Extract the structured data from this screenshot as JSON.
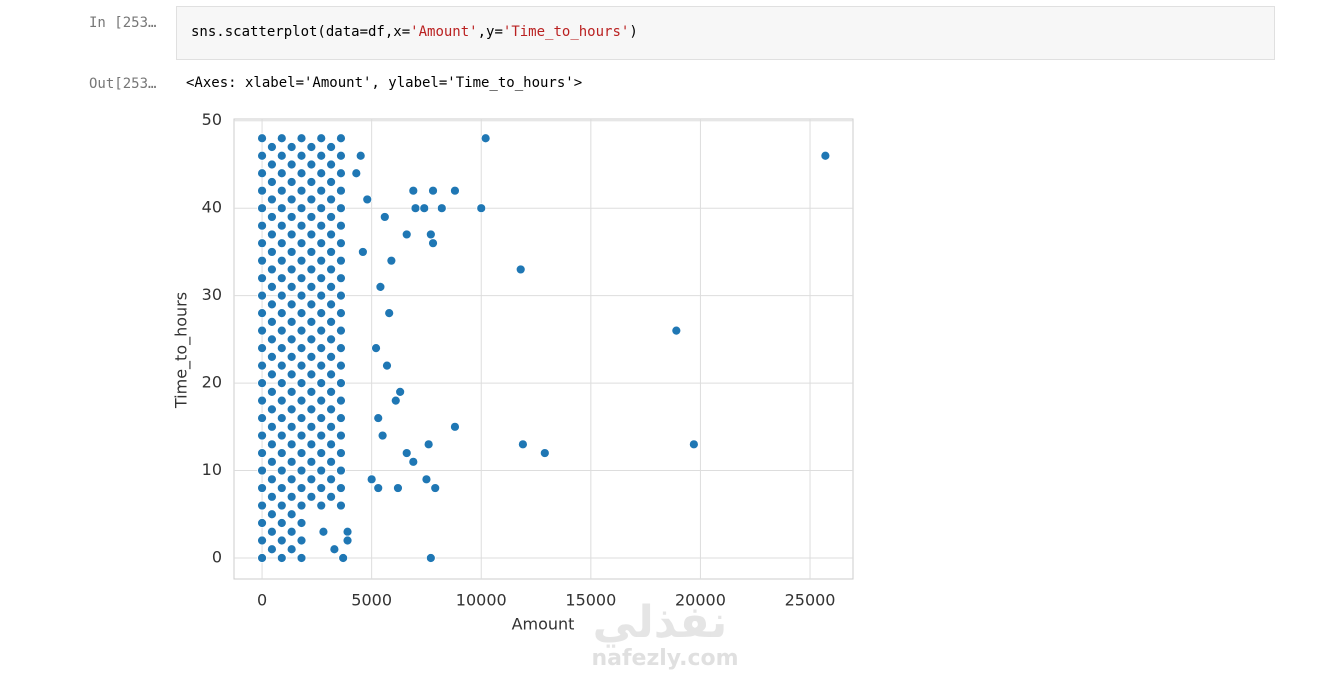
{
  "notebook": {
    "in_prompt": "In [253…",
    "code_tokens": [
      "sns.scatterplot(data=df,x=",
      "'Amount'",
      ",y=",
      "'Time_to_hours'",
      ")"
    ],
    "out_prompt": "Out[253…",
    "output_text": "<Axes: xlabel='Amount', ylabel='Time_to_hours'>"
  },
  "watermark": {
    "arabic": "نفذلي",
    "site": "nafezly.com"
  },
  "chart_data": {
    "type": "scatter",
    "xlabel": "Amount",
    "ylabel": "Time_to_hours",
    "color": "#1f77b4",
    "grid": true,
    "xlim": [
      -1280,
      26960
    ],
    "ylim": [
      -2.4,
      50.2
    ],
    "xticks": [
      0,
      5000,
      10000,
      15000,
      20000,
      25000
    ],
    "yticks": [
      0,
      10,
      20,
      30,
      40,
      50
    ],
    "x": [
      0,
      900,
      1800,
      450,
      1350,
      0,
      900,
      1800,
      450,
      1350,
      0,
      900,
      1800,
      450,
      1350,
      0,
      900,
      1800,
      2700,
      3600,
      450,
      1350,
      2250,
      3150,
      0,
      900,
      1800,
      2700,
      3600,
      450,
      1350,
      2250,
      3150,
      0,
      900,
      1800,
      2700,
      3600,
      450,
      1350,
      2250,
      3150,
      0,
      900,
      1800,
      2700,
      3600,
      450,
      1350,
      2250,
      3150,
      0,
      900,
      1800,
      2700,
      3600,
      450,
      1350,
      2250,
      3150,
      0,
      900,
      1800,
      2700,
      3600,
      450,
      1350,
      2250,
      3150,
      0,
      900,
      1800,
      2700,
      3600,
      450,
      1350,
      2250,
      3150,
      0,
      900,
      1800,
      2700,
      3600,
      450,
      1350,
      2250,
      3150,
      0,
      900,
      1800,
      2700,
      3600,
      450,
      1350,
      2250,
      3150,
      0,
      900,
      1800,
      2700,
      3600,
      450,
      1350,
      2250,
      3150,
      0,
      900,
      1800,
      2700,
      3600,
      450,
      1350,
      2250,
      3150,
      0,
      900,
      1800,
      2700,
      3600,
      450,
      1350,
      2250,
      3150,
      0,
      900,
      1800,
      2700,
      3600,
      450,
      1350,
      2250,
      3150,
      0,
      900,
      1800,
      2700,
      3600,
      450,
      1350,
      2250,
      3150,
      0,
      900,
      1800,
      2700,
      3600,
      450,
      1350,
      2250,
      3150,
      0,
      900,
      1800,
      2700,
      3600,
      450,
      1350,
      2250,
      3150,
      0,
      900,
      1800,
      2700,
      3600,
      450,
      1350,
      2250,
      3150,
      0,
      900,
      1800,
      2700,
      3600,
      450,
      1350,
      2250,
      3150,
      0,
      900,
      1800,
      2700,
      3600,
      450,
      1350,
      2250,
      3150,
      0,
      900,
      1800,
      2700,
      3600,
      450,
      1350,
      2250,
      3150,
      0,
      900,
      1800,
      2700,
      3600,
      450,
      1350,
      2250,
      3150,
      0,
      900,
      1800,
      2700,
      3600,
      10200,
      25700,
      10000,
      11800,
      18900,
      8800,
      11900,
      19700,
      12900,
      7700,
      7600,
      7900,
      7500,
      8800,
      7800,
      6900,
      8200,
      7000,
      7400,
      7700,
      7800,
      6600,
      5900,
      5600,
      6300,
      6100,
      5700,
      5200,
      5800,
      5400,
      5300,
      5500,
      6600,
      6900,
      5000,
      6200,
      5300,
      3900,
      3900,
      3700,
      3300,
      2800,
      4500,
      4800,
      4300,
      4600
    ],
    "values": [
      0,
      0,
      0,
      1,
      1,
      2,
      2,
      2,
      3,
      3,
      4,
      4,
      4,
      5,
      5,
      6,
      6,
      6,
      6,
      6,
      7,
      7,
      7,
      7,
      8,
      8,
      8,
      8,
      8,
      9,
      9,
      9,
      9,
      10,
      10,
      10,
      10,
      10,
      11,
      11,
      11,
      11,
      12,
      12,
      12,
      12,
      12,
      13,
      13,
      13,
      13,
      14,
      14,
      14,
      14,
      14,
      15,
      15,
      15,
      15,
      16,
      16,
      16,
      16,
      16,
      17,
      17,
      17,
      17,
      18,
      18,
      18,
      18,
      18,
      19,
      19,
      19,
      19,
      20,
      20,
      20,
      20,
      20,
      21,
      21,
      21,
      21,
      22,
      22,
      22,
      22,
      22,
      23,
      23,
      23,
      23,
      24,
      24,
      24,
      24,
      24,
      25,
      25,
      25,
      25,
      26,
      26,
      26,
      26,
      26,
      27,
      27,
      27,
      27,
      28,
      28,
      28,
      28,
      28,
      29,
      29,
      29,
      29,
      30,
      30,
      30,
      30,
      30,
      31,
      31,
      31,
      31,
      32,
      32,
      32,
      32,
      32,
      33,
      33,
      33,
      33,
      34,
      34,
      34,
      34,
      34,
      35,
      35,
      35,
      35,
      36,
      36,
      36,
      36,
      36,
      37,
      37,
      37,
      37,
      38,
      38,
      38,
      38,
      38,
      39,
      39,
      39,
      39,
      40,
      40,
      40,
      40,
      40,
      41,
      41,
      41,
      41,
      42,
      42,
      42,
      42,
      42,
      43,
      43,
      43,
      43,
      44,
      44,
      44,
      44,
      44,
      45,
      45,
      45,
      45,
      46,
      46,
      46,
      46,
      46,
      47,
      47,
      47,
      47,
      48,
      48,
      48,
      48,
      48,
      48,
      46,
      40,
      33,
      26,
      15,
      13,
      13,
      12,
      0,
      13,
      8,
      9,
      42,
      42,
      42,
      40,
      40,
      40,
      37,
      36,
      37,
      34,
      39,
      19,
      18,
      22,
      24,
      28,
      31,
      16,
      14,
      12,
      11,
      9,
      8,
      8,
      3,
      2,
      0,
      1,
      3,
      46,
      41,
      44,
      35
    ]
  }
}
